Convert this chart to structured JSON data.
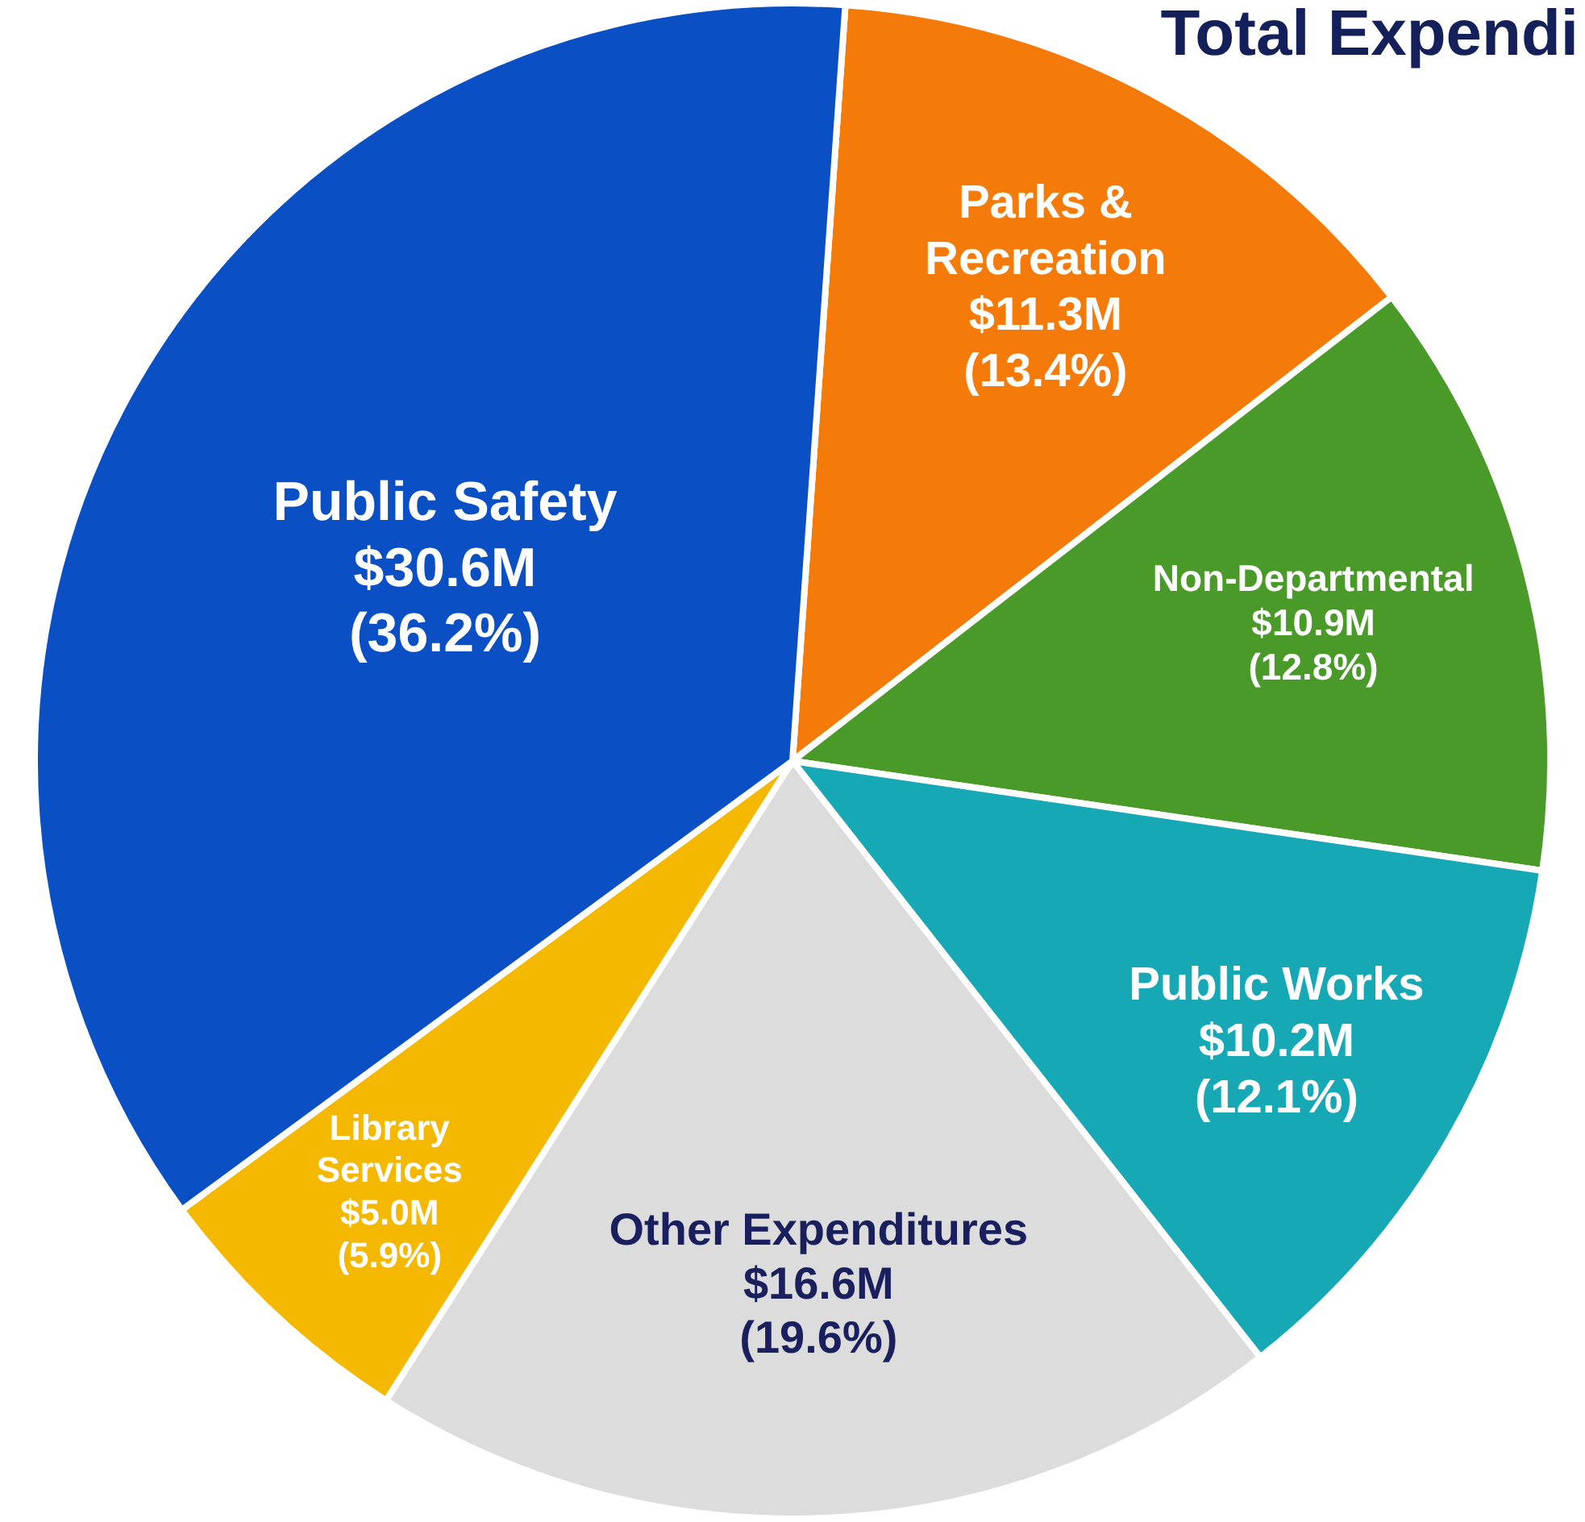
{
  "chart_data": {
    "type": "pie",
    "title": "Total Expendi",
    "categories": [
      "Parks & Recreation",
      "Non-Departmental",
      "Public Works",
      "Other Expenditures",
      "Library Services",
      "Public Safety"
    ],
    "values": [
      13.4,
      12.8,
      12.1,
      19.6,
      5.9,
      36.2
    ],
    "value_labels": [
      "$11.3M (13.4%)",
      "$10.9M (12.8%)",
      "$10.2M (12.1%)",
      "$16.6M (19.6%)",
      "$5.0M (5.9%)",
      "$30.6M (36.2%)"
    ],
    "colors": [
      "#f47b0a",
      "#4a9a2a",
      "#17a8b5",
      "#dcdcdc",
      "#f5b800",
      "#0a4fc4"
    ]
  }
}
